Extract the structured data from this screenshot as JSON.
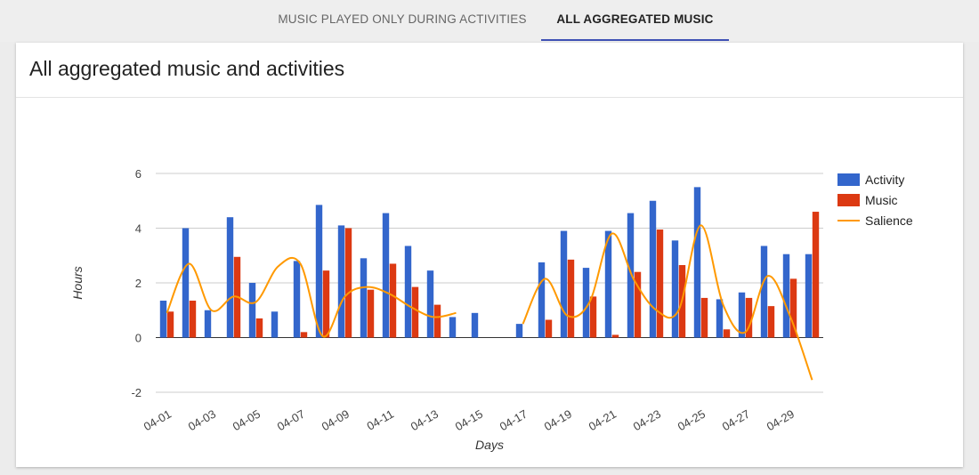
{
  "tabs": [
    {
      "label": "MUSIC PLAYED ONLY DURING ACTIVITIES",
      "active": false
    },
    {
      "label": "ALL AGGREGATED MUSIC",
      "active": true
    }
  ],
  "card": {
    "title": "All aggregated music and activities"
  },
  "colors": {
    "activity": "#3366cc",
    "music": "#dc3912",
    "salience": "#ff9900",
    "accent": "#3f51b5"
  },
  "chart_data": {
    "type": "bar",
    "xlabel": "Days",
    "ylabel": "Hours",
    "ylim": [
      -2,
      6
    ],
    "yticks": [
      -2,
      0,
      2,
      4,
      6
    ],
    "grid": true,
    "legend_position": "right",
    "categories": [
      "04-01",
      "04-02",
      "04-03",
      "04-04",
      "04-05",
      "04-06",
      "04-07",
      "04-08",
      "04-09",
      "04-10",
      "04-11",
      "04-12",
      "04-13",
      "04-14",
      "04-15",
      "04-16",
      "04-17",
      "04-18",
      "04-19",
      "04-20",
      "04-21",
      "04-22",
      "04-23",
      "04-24",
      "04-25",
      "04-26",
      "04-27",
      "04-28",
      "04-29",
      "04-30"
    ],
    "xtick_labels": [
      "04-01",
      "04-03",
      "04-05",
      "04-07",
      "04-09",
      "04-11",
      "04-13",
      "04-15",
      "04-17",
      "04-19",
      "04-21",
      "04-23",
      "04-25",
      "04-27",
      "04-29"
    ],
    "series": [
      {
        "name": "Activity",
        "type": "bar",
        "values": [
          1.35,
          4.0,
          1.0,
          4.4,
          2.0,
          0.95,
          2.8,
          4.85,
          4.1,
          2.9,
          4.55,
          3.35,
          2.45,
          0.75,
          0.9,
          0,
          0.5,
          2.75,
          3.9,
          2.55,
          3.9,
          4.55,
          5.0,
          3.55,
          5.5,
          1.4,
          1.65,
          3.35,
          3.05,
          3.05
        ]
      },
      {
        "name": "Music",
        "type": "bar",
        "values": [
          0.95,
          1.35,
          0,
          2.95,
          0.7,
          0,
          0.2,
          2.45,
          4.0,
          1.75,
          2.7,
          1.85,
          1.2,
          0,
          0,
          0,
          0,
          0.65,
          2.85,
          1.5,
          0.1,
          2.4,
          3.95,
          2.65,
          1.45,
          0.3,
          1.45,
          1.15,
          2.15,
          4.6
        ]
      },
      {
        "name": "Salience",
        "type": "line",
        "smooth": true,
        "values": [
          0.9,
          2.7,
          1.0,
          1.5,
          1.3,
          2.6,
          2.7,
          0.05,
          1.5,
          1.85,
          1.6,
          1.1,
          0.75,
          0.9,
          null,
          null,
          0.5,
          2.15,
          0.8,
          1.3,
          3.8,
          2.1,
          1.0,
          1.0,
          4.1,
          1.2,
          0.2,
          2.25,
          0.8,
          -1.55
        ]
      }
    ]
  }
}
